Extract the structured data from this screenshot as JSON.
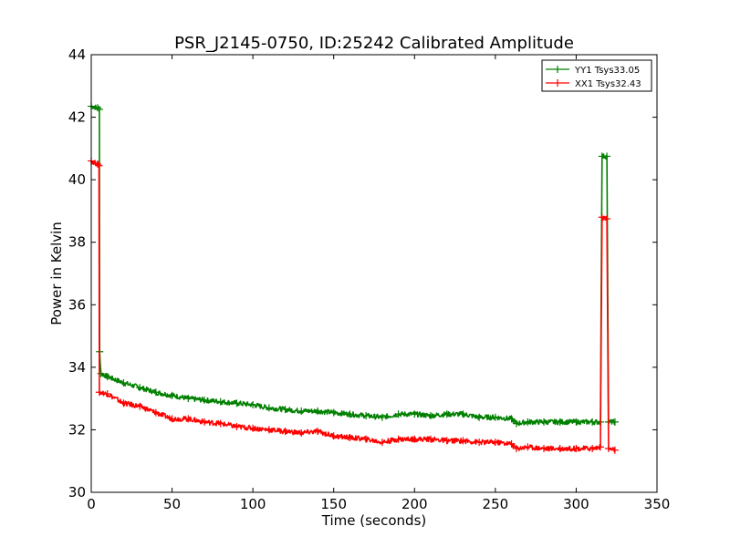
{
  "chart_data": {
    "type": "line",
    "title": "PSR_J2145-0750, ID:25242 Calibrated Amplitude",
    "xlabel": "Time (seconds)",
    "ylabel": "Power in Kelvin",
    "xlim": [
      0,
      350
    ],
    "ylim": [
      30,
      44
    ],
    "xticks": [
      0,
      50,
      100,
      150,
      200,
      250,
      300,
      350
    ],
    "yticks": [
      30,
      32,
      34,
      36,
      38,
      40,
      42,
      44
    ],
    "legend_position": "top-right",
    "grid": false,
    "series": [
      {
        "name": "YY1 Tsys33.05",
        "color": "#008000",
        "points": [
          [
            0,
            42.35
          ],
          [
            4,
            42.3
          ],
          [
            5,
            42.25
          ],
          [
            5.2,
            34.5
          ],
          [
            6,
            33.8
          ],
          [
            10,
            33.7
          ],
          [
            20,
            33.5
          ],
          [
            30,
            33.35
          ],
          [
            40,
            33.2
          ],
          [
            50,
            33.1
          ],
          [
            60,
            33.0
          ],
          [
            70,
            32.95
          ],
          [
            80,
            32.9
          ],
          [
            90,
            32.85
          ],
          [
            100,
            32.8
          ],
          [
            110,
            32.7
          ],
          [
            120,
            32.65
          ],
          [
            130,
            32.6
          ],
          [
            140,
            32.6
          ],
          [
            150,
            32.55
          ],
          [
            160,
            32.5
          ],
          [
            170,
            32.45
          ],
          [
            180,
            32.4
          ],
          [
            190,
            32.5
          ],
          [
            200,
            32.5
          ],
          [
            210,
            32.45
          ],
          [
            220,
            32.5
          ],
          [
            230,
            32.5
          ],
          [
            240,
            32.4
          ],
          [
            250,
            32.4
          ],
          [
            260,
            32.35
          ],
          [
            263,
            32.2
          ],
          [
            270,
            32.25
          ],
          [
            280,
            32.25
          ],
          [
            290,
            32.25
          ],
          [
            300,
            32.25
          ],
          [
            310,
            32.25
          ],
          [
            315,
            32.25
          ],
          [
            316,
            40.75
          ],
          [
            319,
            40.75
          ],
          [
            320,
            32.25
          ],
          [
            324,
            32.25
          ]
        ]
      },
      {
        "name": "XX1 Tsys32.43",
        "color": "#ff0000",
        "points": [
          [
            0,
            40.6
          ],
          [
            4,
            40.5
          ],
          [
            4.8,
            40.45
          ],
          [
            5,
            33.2
          ],
          [
            10,
            33.15
          ],
          [
            20,
            32.85
          ],
          [
            30,
            32.75
          ],
          [
            40,
            32.55
          ],
          [
            50,
            32.35
          ],
          [
            60,
            32.35
          ],
          [
            70,
            32.25
          ],
          [
            80,
            32.2
          ],
          [
            90,
            32.1
          ],
          [
            100,
            32.05
          ],
          [
            110,
            32.0
          ],
          [
            120,
            31.95
          ],
          [
            130,
            31.9
          ],
          [
            140,
            31.95
          ],
          [
            150,
            31.8
          ],
          [
            160,
            31.75
          ],
          [
            170,
            31.7
          ],
          [
            180,
            31.6
          ],
          [
            190,
            31.7
          ],
          [
            200,
            31.7
          ],
          [
            210,
            31.7
          ],
          [
            220,
            31.65
          ],
          [
            230,
            31.65
          ],
          [
            240,
            31.6
          ],
          [
            250,
            31.6
          ],
          [
            260,
            31.55
          ],
          [
            263,
            31.4
          ],
          [
            270,
            31.45
          ],
          [
            280,
            31.4
          ],
          [
            290,
            31.4
          ],
          [
            300,
            31.4
          ],
          [
            310,
            31.4
          ],
          [
            315,
            31.45
          ],
          [
            316,
            38.8
          ],
          [
            319,
            38.75
          ],
          [
            320,
            31.4
          ],
          [
            324,
            31.35
          ]
        ]
      }
    ]
  }
}
